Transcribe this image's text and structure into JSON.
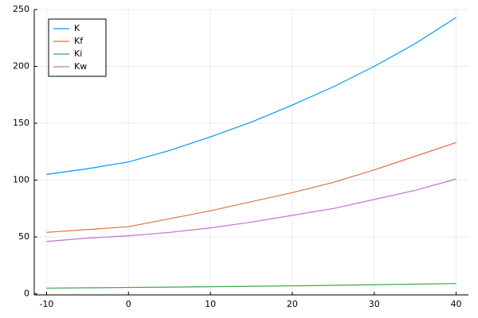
{
  "chart_data": {
    "type": "line",
    "x": [
      -10,
      -5,
      0,
      5,
      10,
      15,
      20,
      25,
      30,
      35,
      40
    ],
    "series": [
      {
        "name": "K",
        "color": "#009af9",
        "values": [
          105,
          110,
          116,
          126,
          138,
          151,
          166,
          182,
          200,
          220,
          243
        ]
      },
      {
        "name": "Kf",
        "color": "#e26f46",
        "values": [
          54,
          56.5,
          59,
          66,
          73,
          81,
          89,
          98,
          109,
          121,
          133
        ]
      },
      {
        "name": "Ki",
        "color": "#3da44d",
        "values": [
          5,
          5.3,
          5.6,
          5.9,
          6.2,
          6.6,
          7,
          7.5,
          8,
          8.5,
          9
        ]
      },
      {
        "name": "Kw",
        "color": "#c271d2",
        "values": [
          46,
          49,
          51,
          54,
          58,
          63,
          69,
          75,
          83,
          91,
          101
        ]
      }
    ],
    "xlim": [
      -11.5,
      41.5
    ],
    "ylim": [
      -1,
      250
    ],
    "xticks": [
      -10,
      0,
      10,
      20,
      30,
      40
    ],
    "yticks": [
      0,
      50,
      100,
      150,
      200,
      250
    ],
    "grid": true,
    "legend": "top-left"
  }
}
